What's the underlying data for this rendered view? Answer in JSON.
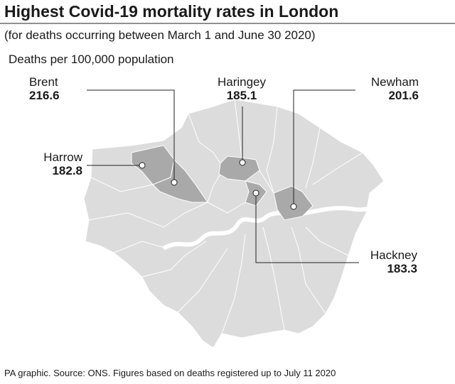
{
  "header": {
    "title": "Highest Covid-19 mortality rates in London",
    "subtitle": "(for deaths occurring between March 1 and June 30 2020)"
  },
  "unit_label": "Deaths per 100,000 population",
  "boroughs": [
    {
      "name": "Brent",
      "value": 216.6
    },
    {
      "name": "Haringey",
      "value": 185.1
    },
    {
      "name": "Newham",
      "value": 201.6
    },
    {
      "name": "Harrow",
      "value": 182.8
    },
    {
      "name": "Hackney",
      "value": 183.3
    }
  ],
  "footer": {
    "source": "PA graphic. Source: ONS. Figures based on deaths registered up to July 11 2020"
  }
}
